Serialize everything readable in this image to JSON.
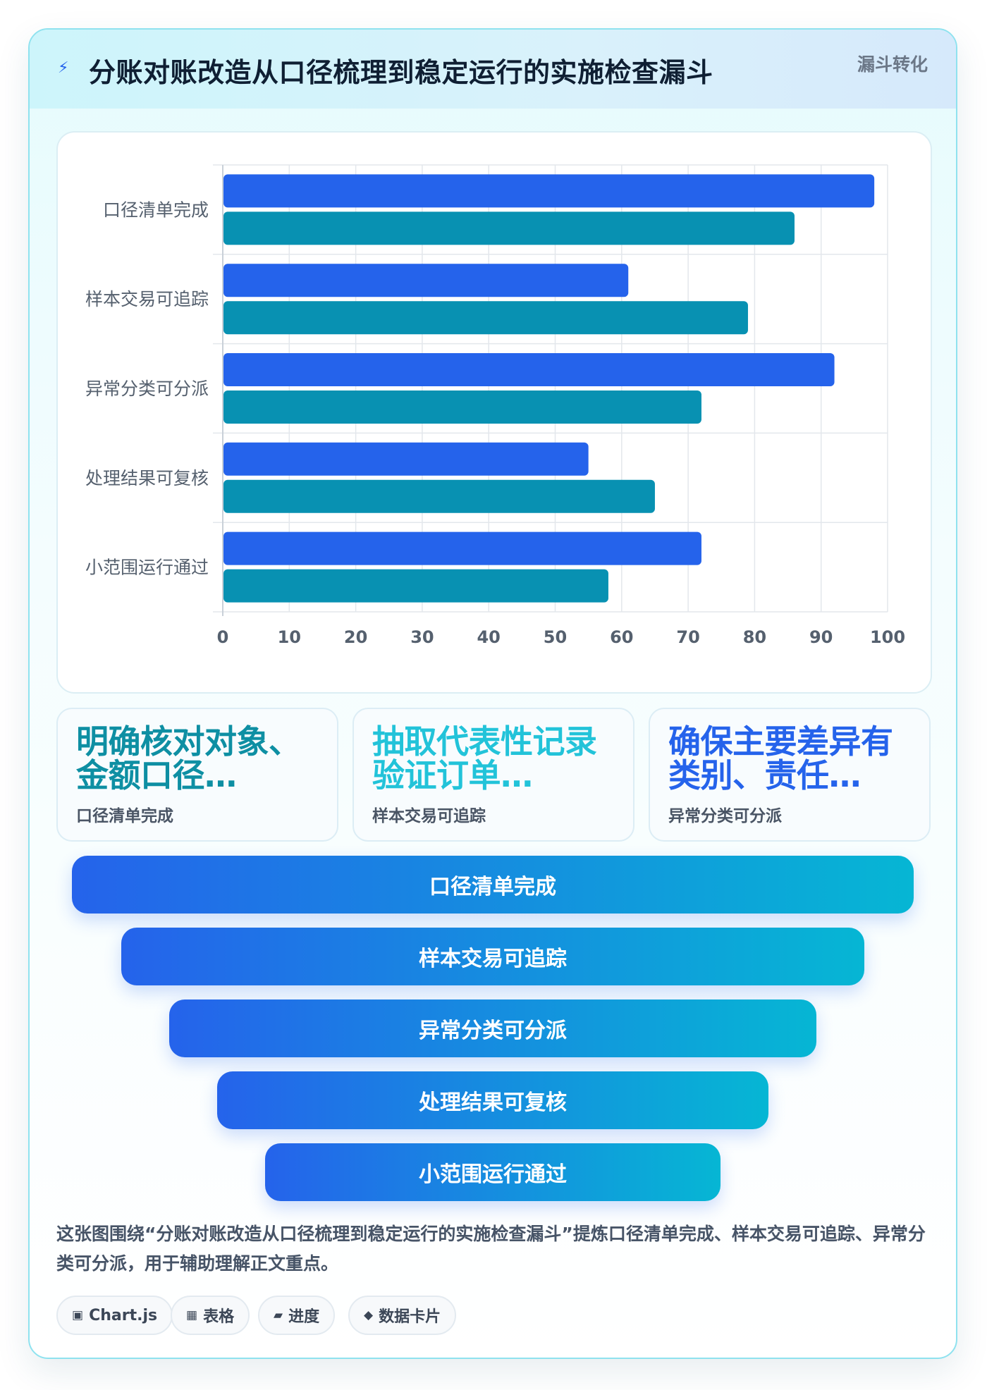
{
  "header": {
    "title": "分账对账改造从口径梳理到稳定运行的实施检查漏斗",
    "tag": "漏斗转化"
  },
  "chart_data": {
    "type": "bar",
    "orientation": "horizontal",
    "categories": [
      "口径清单完成",
      "样本交易可追踪",
      "异常分类可分派",
      "处理结果可复核",
      "小范围运行通过"
    ],
    "series": [
      {
        "values": [
          98,
          61,
          92,
          55,
          72
        ],
        "color": "#2563eb"
      },
      {
        "values": [
          86,
          79,
          72,
          65,
          58
        ],
        "color": "#0891b2"
      }
    ],
    "xlim": [
      0,
      100
    ],
    "xticks": [
      0,
      10,
      20,
      30,
      40,
      50,
      60,
      70,
      80,
      90,
      100
    ],
    "grid": true
  },
  "cards": [
    {
      "value": "明确核对对象、金额口径…",
      "label": "口径清单完成",
      "color": "#0e8fa3"
    },
    {
      "value": "抽取代表性记录验证订单…",
      "label": "样本交易可追踪",
      "color": "#22c3d9"
    },
    {
      "value": "确保主要差异有类别、责任…",
      "label": "异常分类可分派",
      "color": "#2563eb"
    }
  ],
  "funnel": [
    {
      "label": "口径清单完成"
    },
    {
      "label": "样本交易可追踪"
    },
    {
      "label": "异常分类可分派"
    },
    {
      "label": "处理结果可复核"
    },
    {
      "label": "小范围运行通过"
    }
  ],
  "summary": "这张图围绕“分账对账改造从口径梳理到稳定运行的实施检查漏斗”提炼口径清单完成、样本交易可追踪、异常分类可分派，用于辅助理解正文重点。",
  "chips": [
    {
      "icon": "▣",
      "icon_name": "chart-icon",
      "label": "Chart.js"
    },
    {
      "icon": "▦",
      "icon_name": "table-icon",
      "label": "表格"
    },
    {
      "icon": "▰",
      "icon_name": "progress-icon",
      "label": "进度"
    },
    {
      "icon": "◆",
      "icon_name": "data-card-icon",
      "label": "数据卡片"
    }
  ]
}
